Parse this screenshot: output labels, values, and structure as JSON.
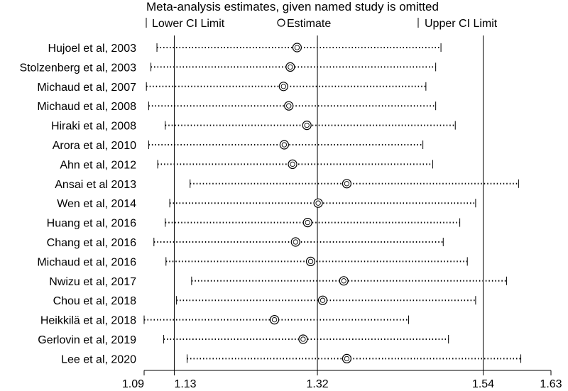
{
  "chart_data": {
    "type": "forest",
    "title": "Meta-analysis estimates, given named study is omitted",
    "legend": {
      "lower": "Lower CI Limit",
      "estimate": "Estimate",
      "upper": "Upper CI Limit"
    },
    "xlim": [
      1.09,
      1.63
    ],
    "ticks": [
      {
        "label": "1.09",
        "value": 1.09
      },
      {
        "label": "1.13",
        "value": 1.13
      },
      {
        "label": "1.32",
        "value": 1.32
      },
      {
        "label": "1.54",
        "value": 1.54
      },
      {
        "label": "1.63",
        "value": 1.63
      }
    ],
    "reference_lines": [
      1.13,
      1.32,
      1.54
    ],
    "studies": [
      {
        "name": "Hujoel et al, 2003",
        "lower": 1.107,
        "estimate": 1.293,
        "upper": 1.484
      },
      {
        "name": "Stolzenberg et al, 2003",
        "lower": 1.099,
        "estimate": 1.284,
        "upper": 1.477
      },
      {
        "name": "Michaud et al, 2007",
        "lower": 1.093,
        "estimate": 1.275,
        "upper": 1.464
      },
      {
        "name": "Michaud et al, 2008",
        "lower": 1.096,
        "estimate": 1.282,
        "upper": 1.477
      },
      {
        "name": "Hiraki et al, 2008",
        "lower": 1.118,
        "estimate": 1.306,
        "upper": 1.503
      },
      {
        "name": "Arora et al, 2010",
        "lower": 1.096,
        "estimate": 1.276,
        "upper": 1.46
      },
      {
        "name": "Ahn et al, 2012",
        "lower": 1.108,
        "estimate": 1.287,
        "upper": 1.473
      },
      {
        "name": "Ansai et al 2013",
        "lower": 1.151,
        "estimate": 1.359,
        "upper": 1.587
      },
      {
        "name": "Wen et al, 2014",
        "lower": 1.124,
        "estimate": 1.321,
        "upper": 1.53
      },
      {
        "name": "Huang et al, 2016",
        "lower": 1.118,
        "estimate": 1.307,
        "upper": 1.509
      },
      {
        "name": "Chang et al, 2016",
        "lower": 1.103,
        "estimate": 1.291,
        "upper": 1.487
      },
      {
        "name": "Michaud et al, 2016",
        "lower": 1.119,
        "estimate": 1.311,
        "upper": 1.519
      },
      {
        "name": "Nwizu et al, 2017",
        "lower": 1.153,
        "estimate": 1.355,
        "upper": 1.571
      },
      {
        "name": "Chou et al, 2018",
        "lower": 1.133,
        "estimate": 1.327,
        "upper": 1.53
      },
      {
        "name": "Heikkilä et al, 2018",
        "lower": 1.09,
        "estimate": 1.263,
        "upper": 1.441
      },
      {
        "name": "Gerlovin et al, 2019",
        "lower": 1.116,
        "estimate": 1.301,
        "upper": 1.494
      },
      {
        "name": "Lee et al, 2020",
        "lower": 1.147,
        "estimate": 1.359,
        "upper": 1.59
      }
    ]
  }
}
